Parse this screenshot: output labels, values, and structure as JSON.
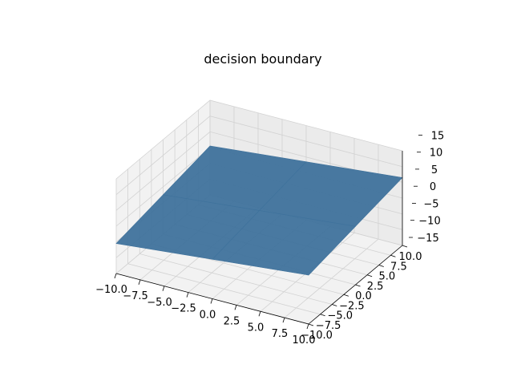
{
  "chart_data": {
    "type": "surface3d",
    "title": "decision boundary",
    "xlabel": "",
    "ylabel": "",
    "zlabel": "",
    "xlim": [
      -10,
      10
    ],
    "ylim": [
      -10,
      10
    ],
    "zlim": [
      -15,
      15
    ],
    "x_ticks": [
      "−10.0",
      "−7.5",
      "−5.0",
      "−2.5",
      "0.0",
      "2.5",
      "5.0",
      "7.5",
      "10.0"
    ],
    "y_ticks": [
      "−10.0",
      "−7.5",
      "−5.0",
      "−2.5",
      "0.0",
      "2.5",
      "5.0",
      "7.5",
      "10.0"
    ],
    "z_ticks": [
      "−15",
      "−10",
      "−5",
      "0",
      "5",
      "10",
      "15"
    ],
    "grid": true,
    "surface": {
      "color": "#3f729c",
      "x": [
        -10,
        0,
        10
      ],
      "y": [
        -10,
        0,
        10
      ],
      "z": [
        [
          -5.5,
          -2.5,
          0.5
        ],
        [
          -2.5,
          0.5,
          3.5
        ],
        [
          0.5,
          3.5,
          6.5
        ]
      ]
    }
  }
}
